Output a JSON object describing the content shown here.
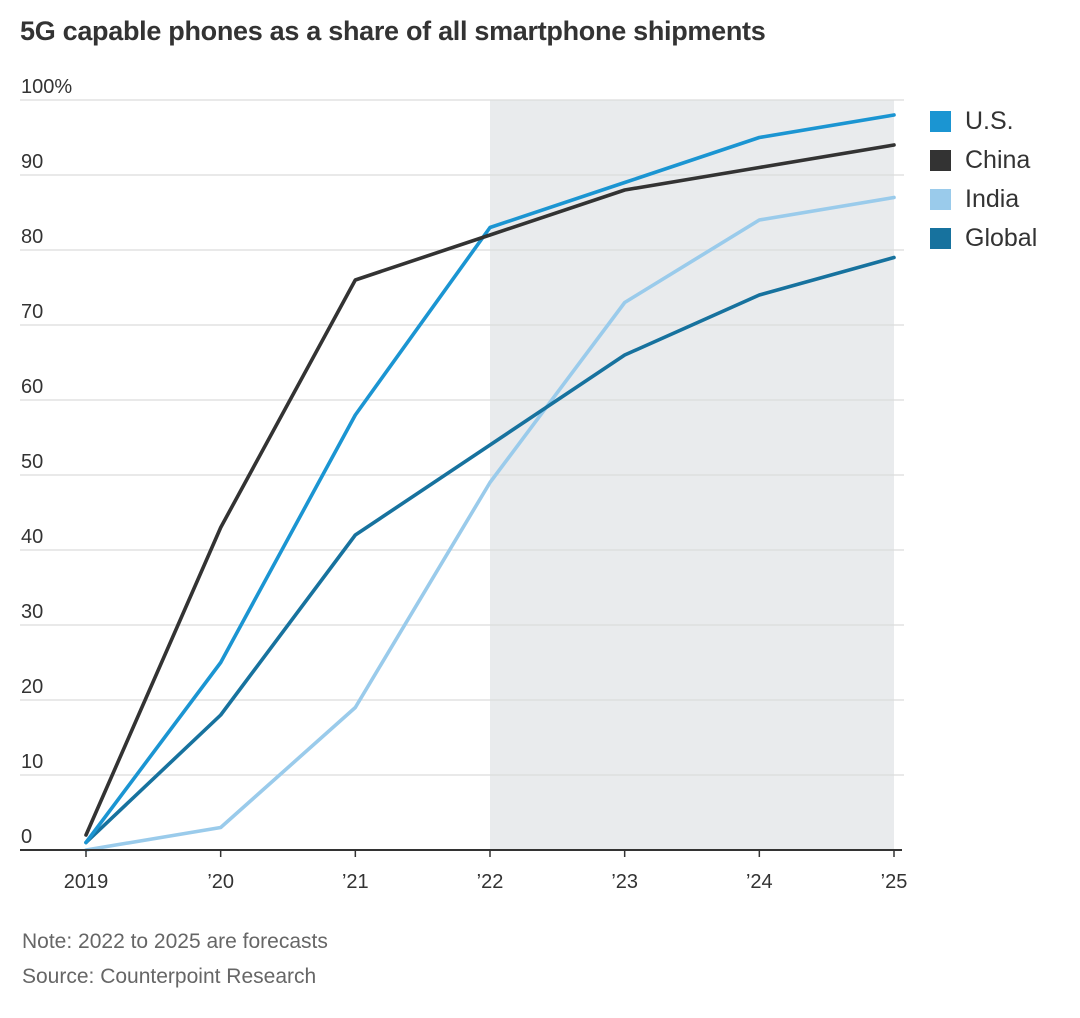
{
  "title": "5G capable phones as a share of all smartphone shipments",
  "note": "Note: 2022 to 2025 are forecasts",
  "source": "Source: Counterpoint Research",
  "chart_data": {
    "type": "line",
    "x": [
      2019,
      2020,
      2021,
      2022,
      2023,
      2024,
      2025
    ],
    "x_tick_labels": [
      "2019",
      "’20",
      "’21",
      "’22",
      "’23",
      "’24",
      "’25"
    ],
    "y_ticks": [
      0,
      10,
      20,
      30,
      40,
      50,
      60,
      70,
      80,
      90,
      100
    ],
    "y_tick_labels": [
      "0",
      "10",
      "20",
      "30",
      "40",
      "50",
      "60",
      "70",
      "80",
      "90",
      "100%"
    ],
    "ylim": [
      0,
      100
    ],
    "xlim": [
      2019,
      2025
    ],
    "grid": true,
    "legend_position": "right",
    "forecast_shading": {
      "from": 2022,
      "to": 2025,
      "color": "#e9ebed"
    },
    "series": [
      {
        "name": "U.S.",
        "color": "#1b95d2",
        "values": [
          1,
          25,
          58,
          83,
          89,
          95,
          98
        ]
      },
      {
        "name": "China",
        "color": "#333333",
        "values": [
          2,
          43,
          76,
          82,
          88,
          91,
          94
        ]
      },
      {
        "name": "India",
        "color": "#9acbeb",
        "values": [
          0,
          3,
          19,
          49,
          73,
          84,
          87
        ]
      },
      {
        "name": "Global",
        "color": "#17729e",
        "values": [
          1,
          18,
          42,
          54,
          66,
          74,
          79
        ]
      }
    ]
  }
}
